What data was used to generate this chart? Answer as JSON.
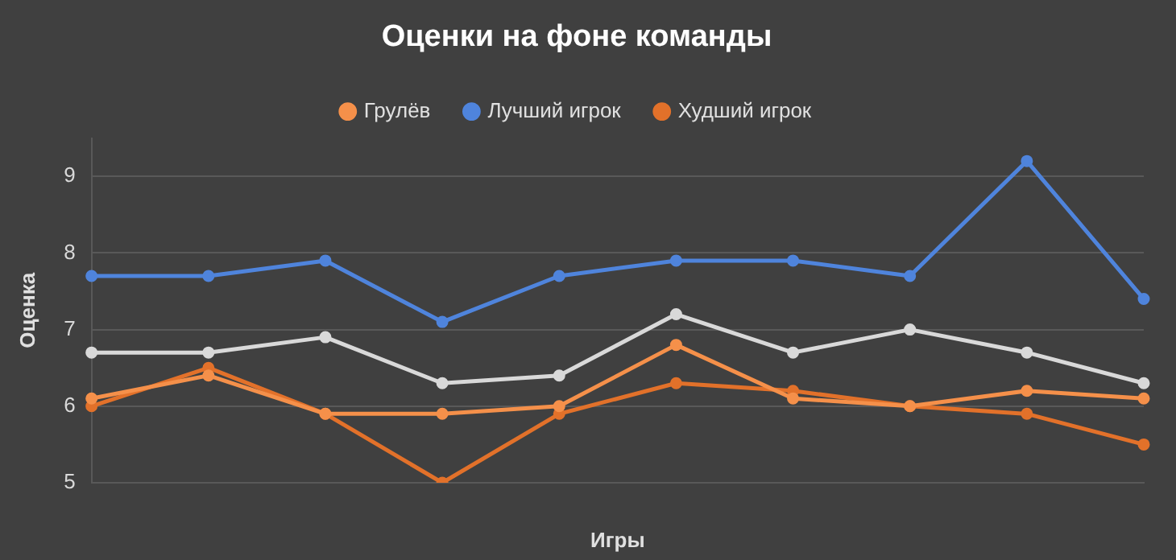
{
  "chart_data": {
    "type": "line",
    "title": "Оценки на фоне команды",
    "xlabel": "Игры",
    "ylabel": "Оценка",
    "categories": [
      null,
      null,
      null,
      null,
      null,
      null,
      null,
      null,
      null,
      null
    ],
    "series": [
      {
        "name": "Грулёв",
        "color": "#f5904a",
        "values": [
          6.1,
          6.4,
          5.9,
          5.9,
          6.0,
          6.8,
          6.1,
          6.0,
          6.2,
          6.1
        ]
      },
      {
        "color": "#d9d9d9",
        "values": [
          6.7,
          6.7,
          6.9,
          6.3,
          6.4,
          7.2,
          6.7,
          7.0,
          6.7,
          6.3
        ]
      },
      {
        "name": "Лучший игрок",
        "color": "#4f84dc",
        "values": [
          7.7,
          7.7,
          7.9,
          7.1,
          7.7,
          7.9,
          7.9,
          7.7,
          9.2,
          7.4
        ]
      },
      {
        "name": "Худший игрок",
        "color": "#e2712a",
        "values": [
          6.0,
          6.5,
          5.9,
          5.0,
          5.9,
          6.3,
          6.2,
          6.0,
          5.9,
          5.5
        ]
      }
    ],
    "ylim": [
      5,
      9.5
    ],
    "yticks": [
      5,
      6,
      7,
      8,
      9
    ],
    "grid": "y",
    "legend": "top",
    "marker": "circle",
    "line_style": "solid"
  }
}
